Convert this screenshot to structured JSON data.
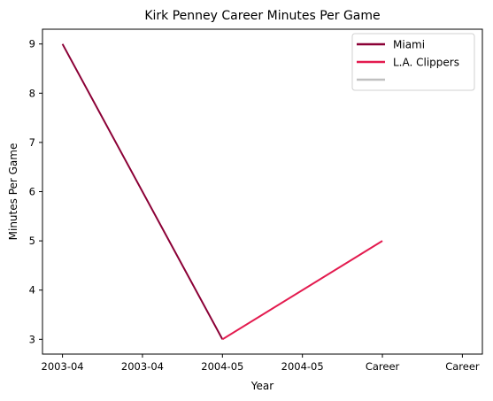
{
  "chart_data": {
    "type": "line",
    "title": "Kirk Penney Career Minutes Per Game",
    "xlabel": "Year",
    "ylabel": "Minutes Per Game",
    "x_tick_labels": [
      "2003-04",
      "2003-04",
      "2004-05",
      "2004-05",
      "Career",
      "Career"
    ],
    "x_tick_positions": [
      0,
      0.5,
      1.0,
      1.5,
      2.0,
      2.5
    ],
    "xlim": [
      -0.125,
      2.625
    ],
    "y_ticks": [
      3,
      4,
      5,
      6,
      7,
      8,
      9
    ],
    "ylim": [
      2.7,
      9.3
    ],
    "grid": false,
    "legend_position": "top-right",
    "series": [
      {
        "name": "Miami",
        "color": "#8b0036",
        "x": [
          0,
          1
        ],
        "y": [
          9,
          3
        ]
      },
      {
        "name": "L.A. Clippers",
        "color": "#e31b4f",
        "x": [
          1,
          2
        ],
        "y": [
          3,
          5
        ]
      },
      {
        "name": "",
        "color": "#c0c0c0",
        "x": [],
        "y": []
      }
    ]
  }
}
